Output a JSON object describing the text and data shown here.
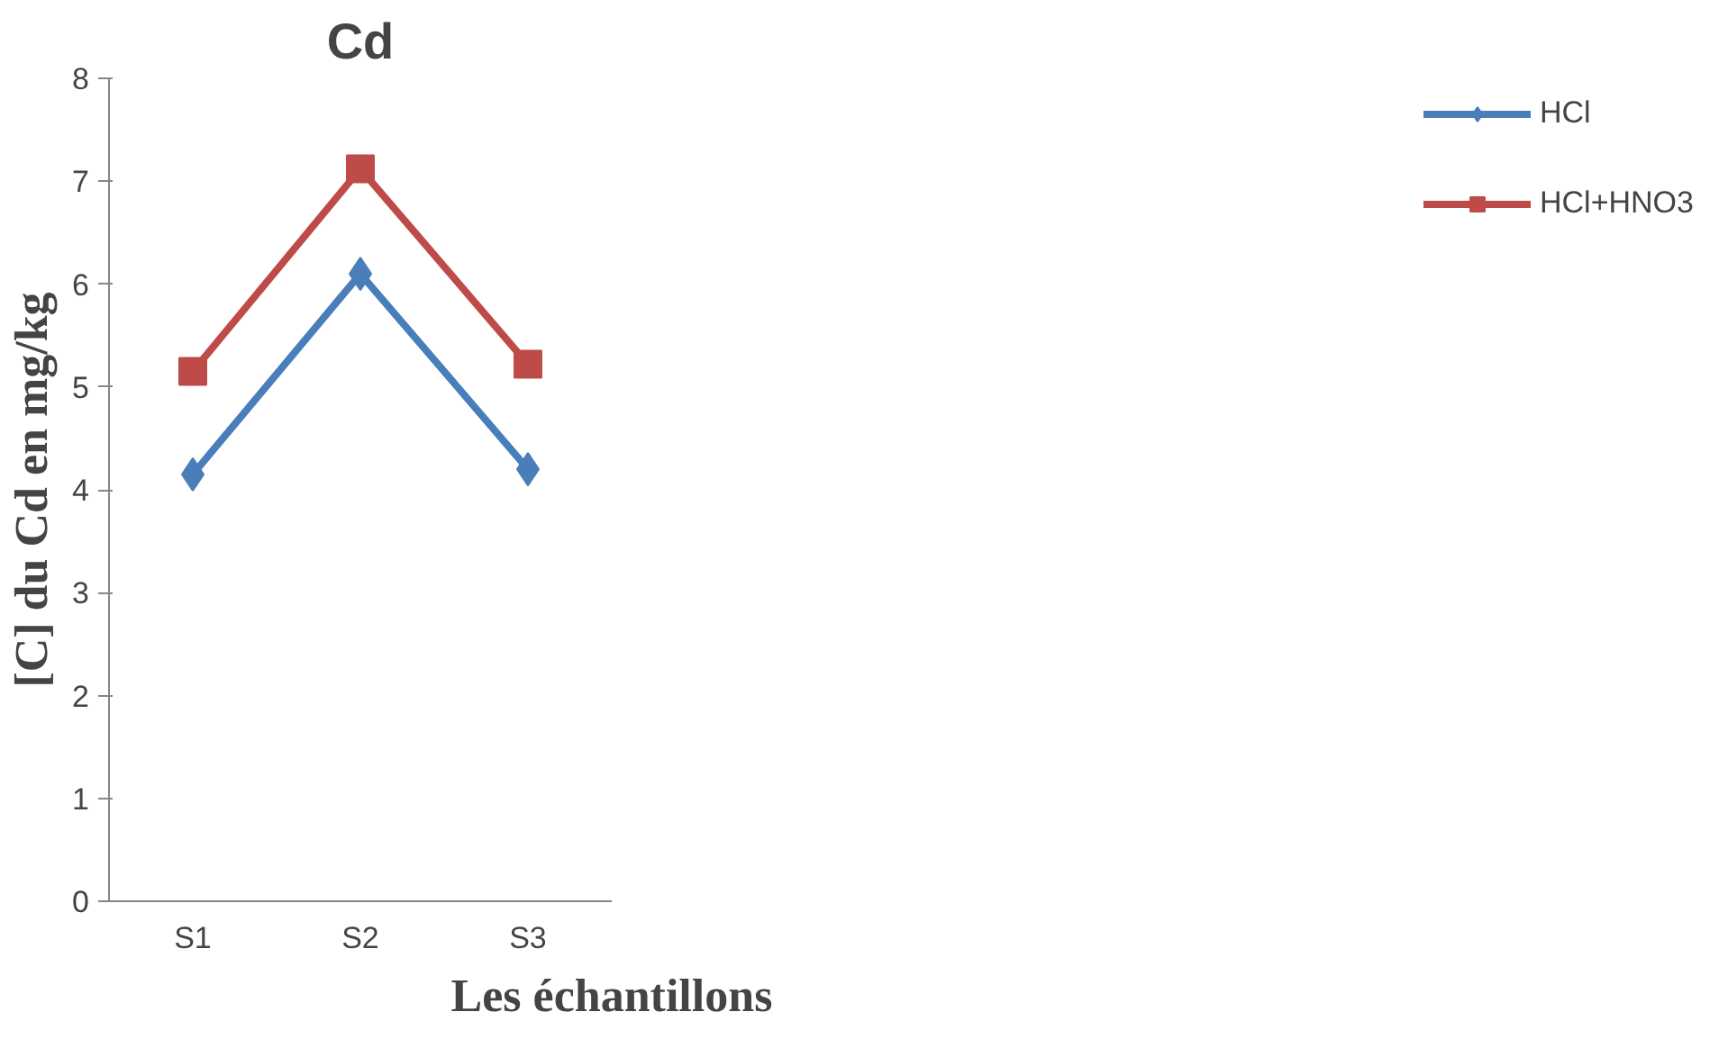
{
  "chart_data": {
    "type": "line",
    "title": "Cd",
    "xlabel": "Les échantillons",
    "ylabel": "[C] du Cd en mg/kg",
    "categories": [
      "S1",
      "S2",
      "S3"
    ],
    "series": [
      {
        "name": "HCl",
        "color": "#4a7ebb",
        "values": [
          4.15,
          6.1,
          4.2
        ],
        "marker": "diamond"
      },
      {
        "name": "HCl+HNO3",
        "color": "#be4b48",
        "values": [
          5.15,
          7.12,
          5.22
        ],
        "marker": "square"
      }
    ],
    "ylim": [
      0,
      8
    ],
    "yticks": [
      0,
      1,
      2,
      3,
      4,
      5,
      6,
      7,
      8
    ],
    "grid": false,
    "legend": "right",
    "line_style": "solid"
  }
}
